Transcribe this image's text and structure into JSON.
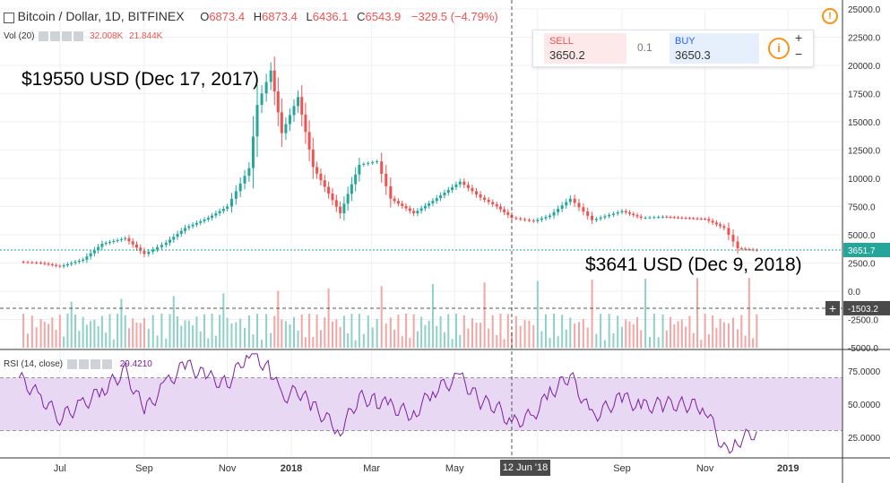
{
  "header": {
    "symbol": "Bitcoin / Dollar, 1D, BITFINEX",
    "o_label": "O",
    "o_value": "6873.4",
    "h_label": "H",
    "h_value": "6873.4",
    "l_label": "L",
    "l_value": "6436.1",
    "c_label": "C",
    "c_value": "6543.9",
    "change": "−329.5 (−4.79%)"
  },
  "volume_legend": {
    "label": "Vol (20)",
    "v1": "32.008K",
    "v2": "21.844K"
  },
  "rsi_legend": {
    "label": "RSI (14, close)",
    "value": "29.4210"
  },
  "trade_panel": {
    "sell_label": "SELL",
    "sell_price": "3650.2",
    "spread": "0.1",
    "buy_label": "BUY",
    "buy_price": "3650.3",
    "info_icon": "i",
    "plus": "+",
    "minus": "−"
  },
  "annotations": {
    "high": "$19550 USD (Dec 17, 2017)",
    "low": "$3641 USD (Dec 9, 2018)"
  },
  "crosshair_label": "12 Jun '18",
  "colors": {
    "up": "#26a69a",
    "down": "#ef5350",
    "rsi_line": "#7b1fa2",
    "rsi_band": "#e9d8f4",
    "accent": "#f7931a"
  },
  "chart_data": {
    "type": "line",
    "title": "Bitcoin / Dollar, 1D, BITFINEX",
    "price_axis": {
      "ticks": [
        "25000.0",
        "22500.0",
        "20000.0",
        "17500.0",
        "15000.0",
        "12500.0",
        "10000.0",
        "7500.0",
        "5000.0",
        "2500.0",
        "0.0",
        "-2500.0",
        "-5000.0"
      ],
      "range": [
        -5000,
        25000
      ],
      "last_price_label": "3651.7",
      "crosshair_value_label": "-1503.2"
    },
    "x_axis": {
      "ticks": [
        "Jul",
        "Sep",
        "Nov",
        "2018",
        "Mar",
        "May",
        "Jul",
        "Sep",
        "Nov",
        "2019"
      ]
    },
    "price_series": {
      "name": "BTC/USD",
      "dates": [
        "2017-06-15",
        "2017-07-01",
        "2017-07-15",
        "2017-08-01",
        "2017-08-15",
        "2017-09-01",
        "2017-09-15",
        "2017-10-01",
        "2017-10-15",
        "2017-11-01",
        "2017-11-15",
        "2017-12-01",
        "2017-12-07",
        "2017-12-17",
        "2017-12-25",
        "2018-01-06",
        "2018-01-17",
        "2018-02-06",
        "2018-02-20",
        "2018-03-05",
        "2018-03-15",
        "2018-04-01",
        "2018-04-15",
        "2018-05-05",
        "2018-05-20",
        "2018-06-01",
        "2018-06-12",
        "2018-06-28",
        "2018-07-10",
        "2018-07-25",
        "2018-08-10",
        "2018-09-01",
        "2018-09-15",
        "2018-10-01",
        "2018-10-15",
        "2018-11-01",
        "2018-11-15",
        "2018-11-25",
        "2018-12-09"
      ],
      "values": [
        2600,
        2500,
        2200,
        2800,
        4200,
        4700,
        3300,
        4300,
        5600,
        6500,
        7500,
        10900,
        16500,
        19550,
        14000,
        17200,
        11000,
        6900,
        11200,
        11500,
        8200,
        6900,
        8000,
        9700,
        8300,
        7500,
        6500,
        6200,
        6700,
        8200,
        6300,
        7100,
        6500,
        6600,
        6500,
        6400,
        5600,
        3800,
        3641
      ]
    },
    "rsi_series": {
      "name": "RSI (14, close)",
      "range": [
        10,
        90
      ],
      "ticks": [
        "75.0000",
        "50.0000",
        "25.0000"
      ],
      "band": [
        30,
        70
      ],
      "values": [
        70,
        55,
        40,
        50,
        60,
        75,
        45,
        65,
        80,
        70,
        65,
        90,
        85,
        75,
        55,
        60,
        48,
        30,
        55,
        52,
        48,
        42,
        60,
        70,
        52,
        48,
        35,
        42,
        58,
        72,
        40,
        55,
        48,
        50,
        50,
        48,
        15,
        22,
        29.42
      ]
    }
  }
}
